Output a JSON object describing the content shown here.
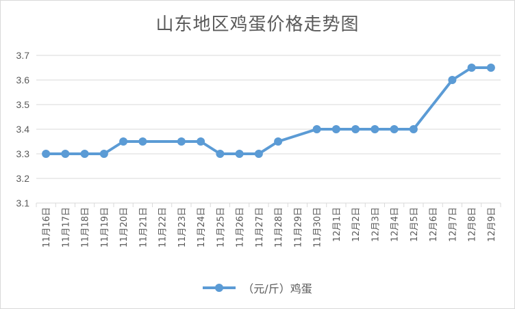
{
  "chart_data": {
    "type": "line",
    "title": "山东地区鸡蛋价格走势图",
    "xlabel": "",
    "ylabel": "",
    "categories": [
      "11月16日",
      "11月17日",
      "11月18日",
      "11月19日",
      "11月20日",
      "11月21日",
      "11月22日",
      "11月23日",
      "11月24日",
      "11月25日",
      "11月26日",
      "11月27日",
      "11月28日",
      "11月29日",
      "11月30日",
      "12月1日",
      "12月2日",
      "12月3日",
      "12月4日",
      "12月5日",
      "12月6日",
      "12月7日",
      "12月8日",
      "12月9日"
    ],
    "series": [
      {
        "name": "（元/斤）鸡蛋",
        "color": "#5b9bd5",
        "values": [
          3.3,
          3.3,
          3.3,
          3.3,
          3.35,
          3.35,
          null,
          3.35,
          3.35,
          3.3,
          3.3,
          3.3,
          3.35,
          null,
          3.4,
          3.4,
          3.4,
          3.4,
          3.4,
          3.4,
          null,
          3.6,
          3.65,
          3.65
        ]
      }
    ],
    "ylim": [
      3.1,
      3.7
    ],
    "yticks": [
      "3.1",
      "3.2",
      "3.3",
      "3.4",
      "3.5",
      "3.6",
      "3.7"
    ],
    "grid": true,
    "legend": "bottom"
  }
}
